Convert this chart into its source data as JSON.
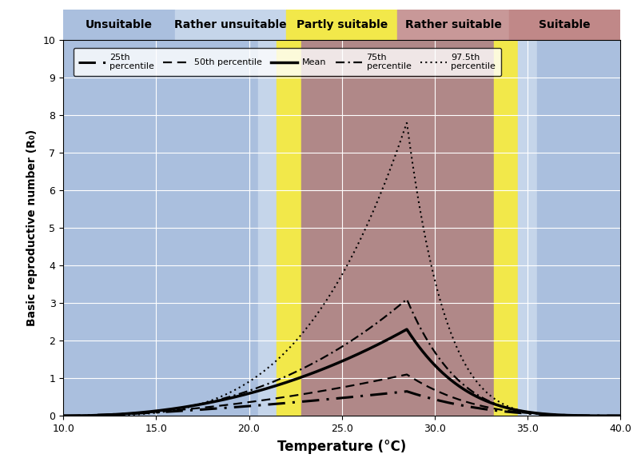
{
  "xlabel": "Temperature (°C)",
  "ylabel": "Basic reproductive number (R₀)",
  "xlim": [
    10.0,
    40.0
  ],
  "ylim": [
    0,
    10
  ],
  "xticks": [
    10.0,
    15.0,
    20.0,
    25.0,
    30.0,
    35.0,
    40.0
  ],
  "yticks": [
    0,
    1,
    2,
    3,
    4,
    5,
    6,
    7,
    8,
    9,
    10
  ],
  "bg_zones": [
    {
      "xmin": 10.0,
      "xmax": 20.5,
      "color": "#aabfde"
    },
    {
      "xmin": 20.5,
      "xmax": 21.5,
      "color": "#c5d5ea"
    },
    {
      "xmin": 21.5,
      "xmax": 22.8,
      "color": "#f2e84a"
    },
    {
      "xmin": 22.8,
      "xmax": 33.2,
      "color": "#b08888"
    },
    {
      "xmin": 33.2,
      "xmax": 34.5,
      "color": "#f2e84a"
    },
    {
      "xmin": 34.5,
      "xmax": 35.5,
      "color": "#c5d5ea"
    },
    {
      "xmin": 35.5,
      "xmax": 40.0,
      "color": "#aabfde"
    }
  ],
  "header_zones": [
    {
      "label": "Unsuitable",
      "color": "#aabfde"
    },
    {
      "label": "Rather unsuitable",
      "color": "#c5d5ea"
    },
    {
      "label": "Partly suitable",
      "color": "#f2e84a"
    },
    {
      "label": "Rather suitable",
      "color": "#c89898"
    },
    {
      "label": "Suitable",
      "color": "#c08888"
    }
  ],
  "curves": [
    {
      "peak": 0.65,
      "peak_temp": 28.5,
      "t_min": 10.0,
      "t_max": 40.5,
      "alpha_l": 1.5,
      "alpha_r": 3.0,
      "dash": [
        7,
        3,
        1,
        3
      ],
      "lw": 2.2,
      "label": "25th\npercentile"
    },
    {
      "peak": 1.1,
      "peak_temp": 28.5,
      "t_min": 10.0,
      "t_max": 40.5,
      "alpha_l": 1.8,
      "alpha_r": 3.5,
      "dash": [
        5,
        3
      ],
      "lw": 1.6,
      "label": "50th percentile"
    },
    {
      "peak": 2.3,
      "peak_temp": 28.5,
      "t_min": 10.0,
      "t_max": 40.5,
      "alpha_l": 2.2,
      "alpha_r": 4.0,
      "dash": null,
      "lw": 2.5,
      "label": "Mean"
    },
    {
      "peak": 3.1,
      "peak_temp": 28.5,
      "t_min": 10.0,
      "t_max": 40.5,
      "alpha_l": 2.5,
      "alpha_r": 4.5,
      "dash": [
        5,
        2,
        1,
        2
      ],
      "lw": 1.6,
      "label": "75th\npercentile"
    },
    {
      "peak": 7.8,
      "peak_temp": 28.5,
      "t_min": 10.0,
      "t_max": 41.0,
      "alpha_l": 3.5,
      "alpha_r": 6.0,
      "dash": [
        1,
        2
      ],
      "lw": 1.5,
      "label": "97.5th\npercentile"
    }
  ]
}
